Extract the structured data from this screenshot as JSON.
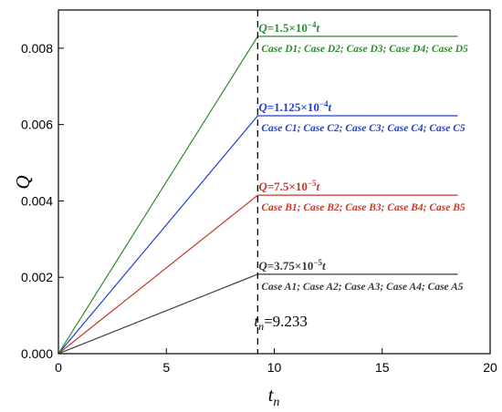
{
  "chart_data": {
    "type": "line",
    "xlabel": "t",
    "xlabel_sub": "n",
    "ylabel": "Q",
    "xlim": [
      0,
      20
    ],
    "ylim": [
      0,
      0.009
    ],
    "x_ticks": [
      0,
      5,
      10,
      15,
      20
    ],
    "x_tick_labels": [
      "0",
      "5",
      "10",
      "15",
      "20"
    ],
    "y_ticks": [
      0,
      0.002,
      0.004,
      0.006,
      0.008
    ],
    "y_tick_labels": [
      "0.000",
      "0.002",
      "0.004",
      "0.006",
      "0.008"
    ],
    "grid": false,
    "vertical_marker": {
      "x": 9.233,
      "label_var": "t",
      "label_sub": "n",
      "label_value": "=9.233"
    },
    "series": [
      {
        "color": "#3a3a3a",
        "x": [
          0,
          9.233,
          18.5
        ],
        "y": [
          0,
          0.00208,
          0.00208
        ],
        "equation": {
          "prefix": "Q",
          "text": "=3.75×10",
          "exp": "−5",
          "suffix": "t"
        },
        "cases": "Case A1; Case A2; Case A3; Case A4; Case A5"
      },
      {
        "color": "#c0392b",
        "x": [
          0,
          9.233,
          18.5
        ],
        "y": [
          0,
          0.00415,
          0.00415
        ],
        "equation": {
          "prefix": "Q",
          "text": "=7.5×10",
          "exp": "−5",
          "suffix": "t"
        },
        "cases": "Case B1; Case B2; Case B3; Case B4; Case B5"
      },
      {
        "color": "#1f3fd6",
        "x": [
          0,
          9.233,
          18.5
        ],
        "y": [
          0,
          0.00623,
          0.00623
        ],
        "equation": {
          "prefix": "Q",
          "text": "=1.125×10",
          "exp": "−4",
          "suffix": "t"
        },
        "cases": "Case C1; Case C2; Case C3; Case C4; Case C5"
      },
      {
        "color": "#2e8b2e",
        "x": [
          0,
          9.233,
          18.5
        ],
        "y": [
          0,
          0.00831,
          0.00831
        ],
        "equation": {
          "prefix": "Q",
          "text": "=1.5×10",
          "exp": "−4",
          "suffix": "t"
        },
        "cases": "Case D1; Case D2; Case D3; Case D4; Case D5"
      }
    ]
  }
}
